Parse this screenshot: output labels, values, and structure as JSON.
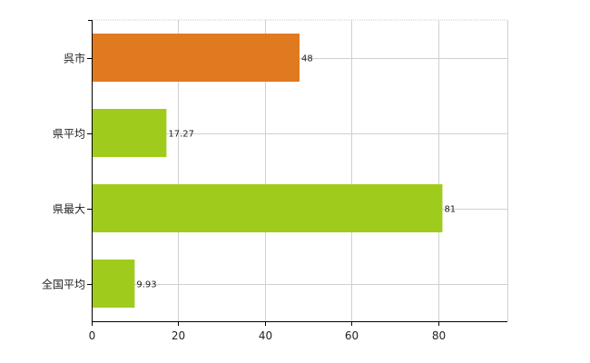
{
  "chart_data": {
    "type": "bar",
    "orientation": "horizontal",
    "categories": [
      "呉市",
      "県平均",
      "県最大",
      "全国平均"
    ],
    "values": [
      48,
      17.27,
      81,
      9.93
    ],
    "value_labels": [
      "48",
      "17.27",
      "81",
      "9.93"
    ],
    "bar_colors": [
      "#e07a20",
      "#9fcc1c",
      "#9fcc1c",
      "#9fcc1c"
    ],
    "xlim": [
      0,
      96
    ],
    "xticks": [
      0,
      20,
      40,
      60,
      80
    ],
    "xtick_labels": [
      "0",
      "20",
      "40",
      "60",
      "80"
    ],
    "grid": true,
    "title": "",
    "xlabel": "",
    "ylabel": ""
  }
}
